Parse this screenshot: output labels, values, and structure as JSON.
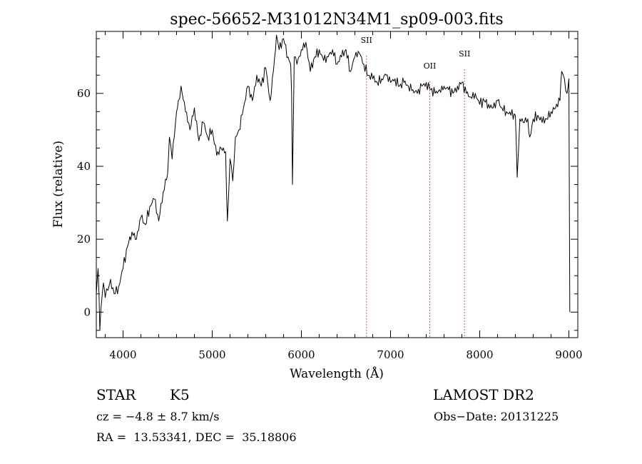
{
  "chart_data": {
    "type": "line",
    "title": "spec-56652-M31012N34M1_sp09-003.fits",
    "xlabel": "Wavelength (Å)",
    "ylabel": "Flux (relative)",
    "xlim": [
      3700,
      9100
    ],
    "ylim": [
      -7,
      77
    ],
    "xticks": [
      4000,
      5000,
      6000,
      7000,
      8000,
      9000
    ],
    "yticks": [
      0,
      20,
      40,
      60
    ],
    "grid": false,
    "line_color": "#000000",
    "series": [
      {
        "x": [
          3700,
          3720,
          3740,
          3760,
          3780,
          3800,
          3830,
          3860,
          3900,
          3950,
          4000,
          4050,
          4100,
          4150,
          4200,
          4250,
          4300,
          4350,
          4400,
          4450,
          4500,
          4520,
          4550,
          4600,
          4620,
          4650,
          4700,
          4750,
          4800,
          4850,
          4900,
          4950,
          5000,
          5050,
          5100,
          5150,
          5170,
          5200,
          5230,
          5260,
          5300,
          5350,
          5400,
          5450,
          5500,
          5550,
          5600,
          5650,
          5700,
          5720,
          5750,
          5800,
          5850,
          5880,
          5890,
          5900,
          5920,
          5950,
          6000,
          6050,
          6100,
          6150,
          6200,
          6250,
          6300,
          6350,
          6400,
          6450,
          6500,
          6550,
          6600,
          6650,
          6700,
          6750,
          6800,
          6850,
          6900,
          6950,
          7000,
          7050,
          7100,
          7150,
          7200,
          7250,
          7300,
          7350,
          7400,
          7450,
          7500,
          7550,
          7600,
          7650,
          7700,
          7750,
          7800,
          7850,
          7900,
          7950,
          8000,
          8050,
          8100,
          8150,
          8200,
          8250,
          8300,
          8350,
          8400,
          8420,
          8450,
          8500,
          8540,
          8560,
          8600,
          8650,
          8700,
          8750,
          8800,
          8850,
          8900,
          8920,
          8950,
          8980,
          9000,
          9010
        ],
        "y": [
          5,
          12,
          -5,
          3,
          8,
          4,
          6,
          9,
          5,
          7,
          12,
          18,
          22,
          20,
          26,
          24,
          29,
          31,
          25,
          33,
          38,
          48,
          42,
          55,
          58,
          62,
          55,
          50,
          56,
          47,
          52,
          48,
          50,
          43,
          45,
          44,
          25,
          42,
          36,
          48,
          50,
          56,
          62,
          58,
          65,
          62,
          67,
          58,
          70,
          76,
          72,
          75,
          70,
          68,
          60,
          35,
          70,
          68,
          72,
          74,
          66,
          70,
          72,
          69,
          70,
          72,
          68,
          70,
          72,
          66,
          70,
          71,
          68,
          65,
          64,
          63,
          64,
          65,
          63,
          64,
          62,
          63,
          62,
          61,
          60,
          62,
          63,
          61,
          60,
          61,
          62,
          61,
          60,
          62,
          63,
          60,
          59,
          60,
          57,
          58,
          57,
          56,
          58,
          56,
          55,
          54,
          54,
          37,
          53,
          52,
          53,
          48,
          53,
          54,
          52,
          53,
          55,
          56,
          58,
          66,
          64,
          60,
          64,
          0
        ]
      }
    ],
    "annotations": [
      {
        "label": "SII",
        "x": 6730
      },
      {
        "label": "OII",
        "x": 7440
      },
      {
        "label": "SII",
        "x": 7830
      }
    ]
  },
  "info": {
    "object_class": "STAR",
    "subclass": "K5",
    "cz": "cz = −4.8 ± 8.7 km/s",
    "radec": "RA =  13.53341, DEC =  35.18806",
    "survey": "LAMOST DR2",
    "obs_date": "Obs−Date: 20131225"
  }
}
